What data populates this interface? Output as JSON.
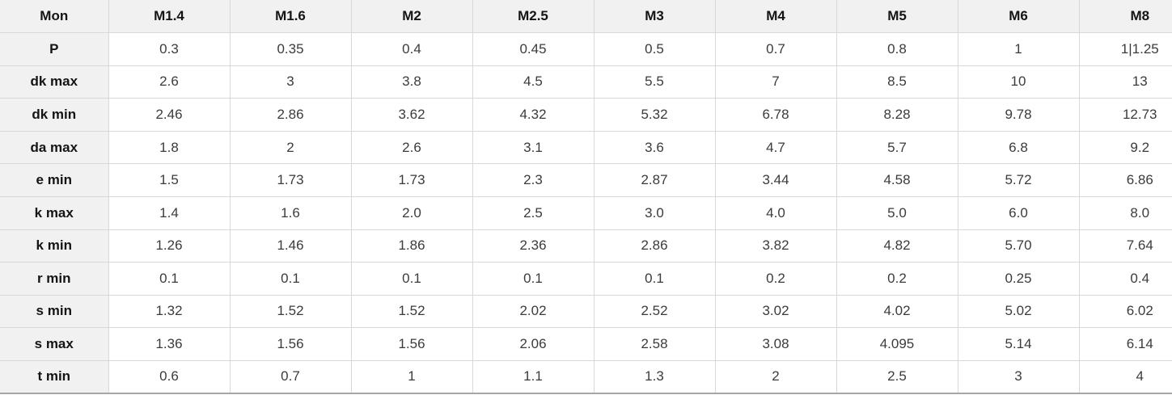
{
  "chart_data": {
    "type": "table",
    "corner_label": "Mon",
    "columns": [
      "M1.4",
      "M1.6",
      "M2",
      "M2.5",
      "M3",
      "M4",
      "M5",
      "M6",
      "M8"
    ],
    "rows": [
      {
        "label": "P",
        "values": [
          "0.3",
          "0.35",
          "0.4",
          "0.45",
          "0.5",
          "0.7",
          "0.8",
          "1",
          "1|1.25"
        ]
      },
      {
        "label": "dk max",
        "values": [
          "2.6",
          "3",
          "3.8",
          "4.5",
          "5.5",
          "7",
          "8.5",
          "10",
          "13"
        ]
      },
      {
        "label": "dk min",
        "values": [
          "2.46",
          "2.86",
          "3.62",
          "4.32",
          "5.32",
          "6.78",
          "8.28",
          "9.78",
          "12.73"
        ]
      },
      {
        "label": "da max",
        "values": [
          "1.8",
          "2",
          "2.6",
          "3.1",
          "3.6",
          "4.7",
          "5.7",
          "6.8",
          "9.2"
        ]
      },
      {
        "label": "e min",
        "values": [
          "1.5",
          "1.73",
          "1.73",
          "2.3",
          "2.87",
          "3.44",
          "4.58",
          "5.72",
          "6.86"
        ]
      },
      {
        "label": "k max",
        "values": [
          "1.4",
          "1.6",
          "2.0",
          "2.5",
          "3.0",
          "4.0",
          "5.0",
          "6.0",
          "8.0"
        ]
      },
      {
        "label": "k min",
        "values": [
          "1.26",
          "1.46",
          "1.86",
          "2.36",
          "2.86",
          "3.82",
          "4.82",
          "5.70",
          "7.64"
        ]
      },
      {
        "label": "r min",
        "values": [
          "0.1",
          "0.1",
          "0.1",
          "0.1",
          "0.1",
          "0.2",
          "0.2",
          "0.25",
          "0.4"
        ]
      },
      {
        "label": "s min",
        "values": [
          "1.32",
          "1.52",
          "1.52",
          "2.02",
          "2.52",
          "3.02",
          "4.02",
          "5.02",
          "6.02"
        ]
      },
      {
        "label": "s max",
        "values": [
          "1.36",
          "1.56",
          "1.56",
          "2.06",
          "2.58",
          "3.08",
          "4.095",
          "5.14",
          "6.14"
        ]
      },
      {
        "label": "t min",
        "values": [
          "0.6",
          "0.7",
          "1",
          "1.1",
          "1.3",
          "2",
          "2.5",
          "3",
          "4"
        ]
      }
    ],
    "layout": {
      "grid": "on",
      "header_position": "top-and-left"
    }
  },
  "colors": {
    "header_bg": "#f1f1f1",
    "cell_bg": "#ffffff",
    "border": "#d8d8d8",
    "bottom_border": "#a6a6a6",
    "header_text": "#141414",
    "value_text": "#3b3b3b"
  }
}
